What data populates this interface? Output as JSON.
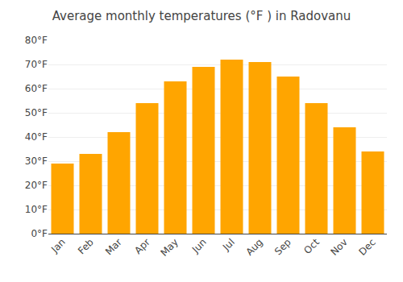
{
  "chart_data": {
    "type": "bar",
    "title": "Average monthly temperatures (°F ) in Radovanu",
    "categories": [
      "Jan",
      "Feb",
      "Mar",
      "Apr",
      "May",
      "Jun",
      "Jul",
      "Aug",
      "Sep",
      "Oct",
      "Nov",
      "Dec"
    ],
    "values": [
      29,
      33,
      42,
      54,
      63,
      69,
      72,
      71,
      65,
      54,
      44,
      34
    ],
    "color": "#FFA500",
    "ylim": [
      0,
      80
    ],
    "yticks": [
      {
        "value": 0,
        "label": "0°F"
      },
      {
        "value": 10,
        "label": "10°F"
      },
      {
        "value": 20,
        "label": "20°F"
      },
      {
        "value": 30,
        "label": "30°F"
      },
      {
        "value": 40,
        "label": "40°F"
      },
      {
        "value": 50,
        "label": "50°F"
      },
      {
        "value": 60,
        "label": "60°F"
      },
      {
        "value": 70,
        "label": "70°F"
      },
      {
        "value": 80,
        "label": "80°F"
      }
    ],
    "grid": true
  }
}
